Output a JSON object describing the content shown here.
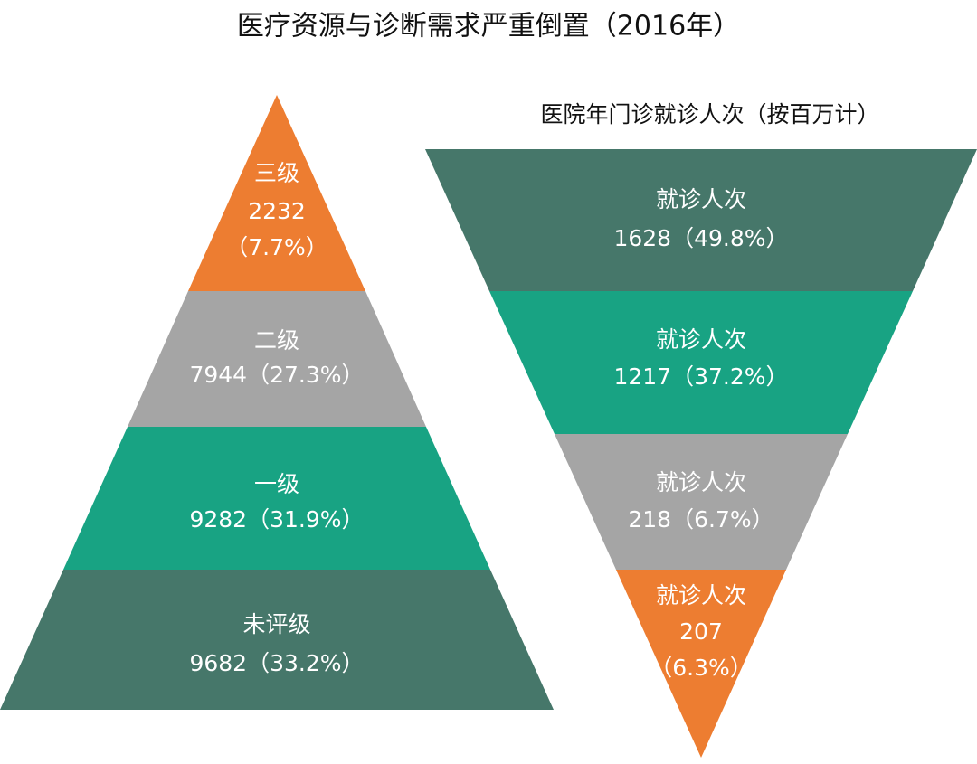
{
  "title": "医疗资源与诊断需求严重倒置（2016年）",
  "pyramid": {
    "levels": [
      {
        "label": "三级",
        "value": 2232,
        "share": "（7.7%）"
      },
      {
        "label": "二级",
        "value": 7944,
        "share": "（27.3%）"
      },
      {
        "label": "一级",
        "value": 9282,
        "share": "（31.9%）"
      },
      {
        "label": "未评级",
        "value": 9682,
        "share": "（33.2%）"
      }
    ]
  },
  "funnel": {
    "title": "医院年门诊就诊人次（按百万计）",
    "levels": [
      {
        "label": "就诊人次",
        "value": 1628,
        "share": "（49.8%）"
      },
      {
        "label": "就诊人次",
        "value": 1217,
        "share": "（37.2%）"
      },
      {
        "label": "就诊人次",
        "value": 218,
        "share": "（6.7%）"
      },
      {
        "label": "就诊人次",
        "value": 207,
        "share": "（6.3%）"
      }
    ]
  }
}
